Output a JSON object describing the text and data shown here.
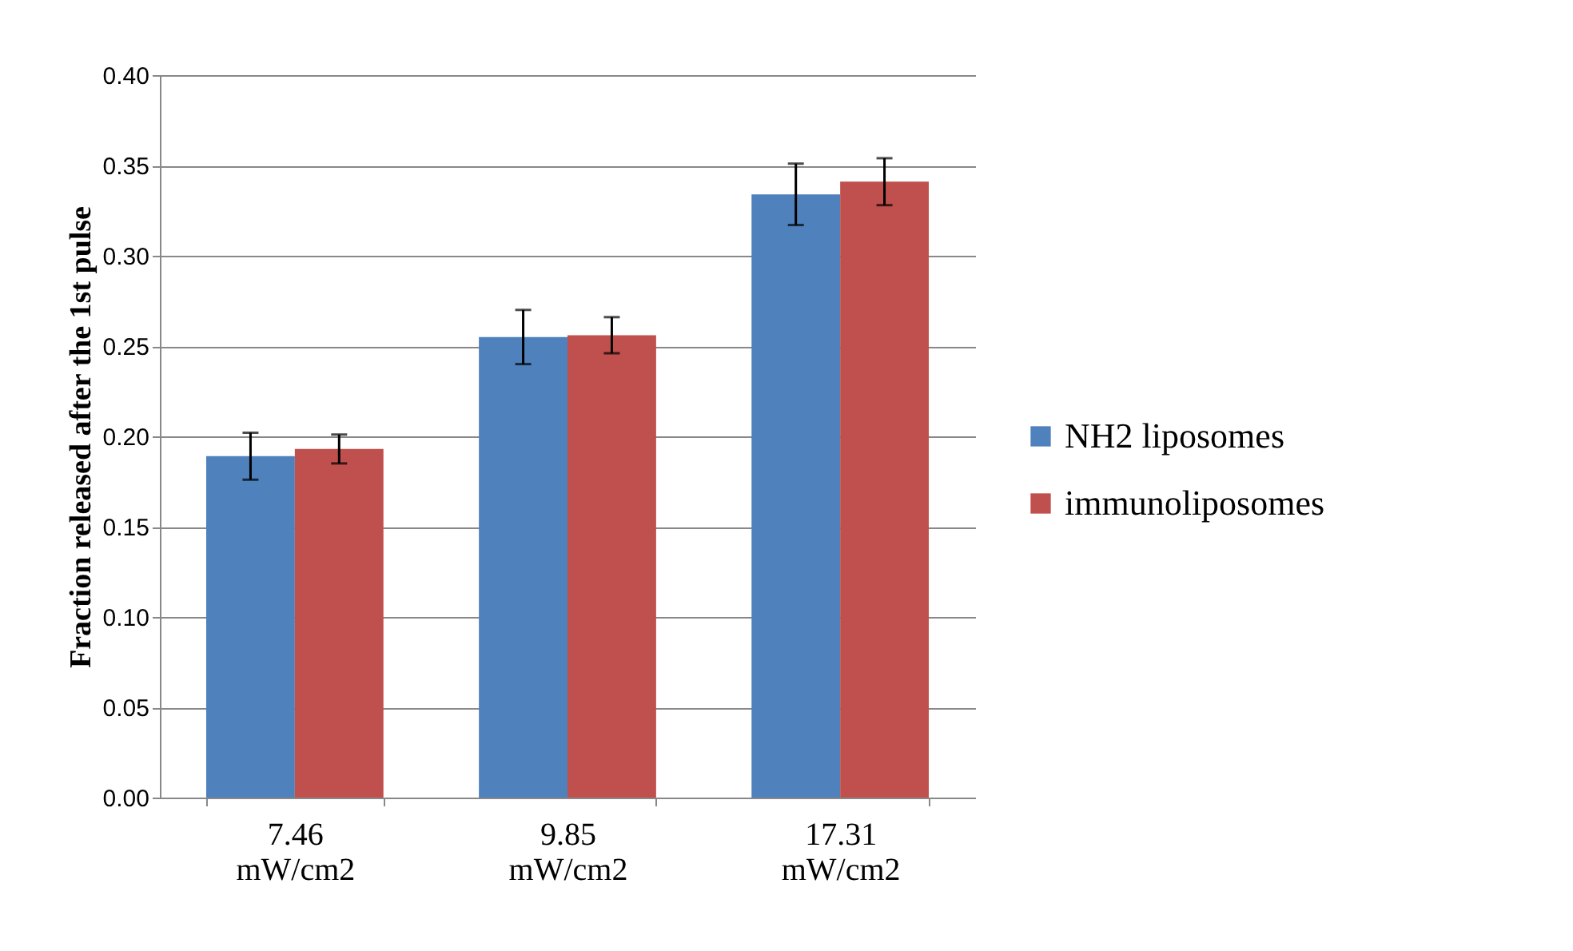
{
  "chart_data": {
    "type": "bar",
    "ylabel": "Fraction released after the 1st pulse",
    "categories": [
      "7.46 mW/cm2",
      "9.85 mW/cm2",
      "17.31 mW/cm2"
    ],
    "series": [
      {
        "name": "NH2 liposomes",
        "color": "#4f81bd",
        "values": [
          0.189,
          0.255,
          0.334
        ],
        "errors": [
          0.013,
          0.015,
          0.017
        ]
      },
      {
        "name": "immunoliposomes",
        "color": "#c0504d",
        "values": [
          0.193,
          0.256,
          0.341
        ],
        "errors": [
          0.008,
          0.01,
          0.013
        ]
      }
    ],
    "ylim": [
      0,
      0.4
    ],
    "yticks": [
      {
        "value": 0,
        "label": "0.00"
      },
      {
        "value": 0.05,
        "label": "0.05"
      },
      {
        "value": 0.1,
        "label": "0.10"
      },
      {
        "value": 0.15,
        "label": "0.15"
      },
      {
        "value": 0.2,
        "label": "0.20"
      },
      {
        "value": 0.25,
        "label": "0.25"
      },
      {
        "value": 0.3,
        "label": "0.30"
      },
      {
        "value": 0.35,
        "label": "0.35"
      },
      {
        "value": 0.4,
        "label": "0.40"
      }
    ],
    "grid": "y",
    "legend": "right"
  }
}
